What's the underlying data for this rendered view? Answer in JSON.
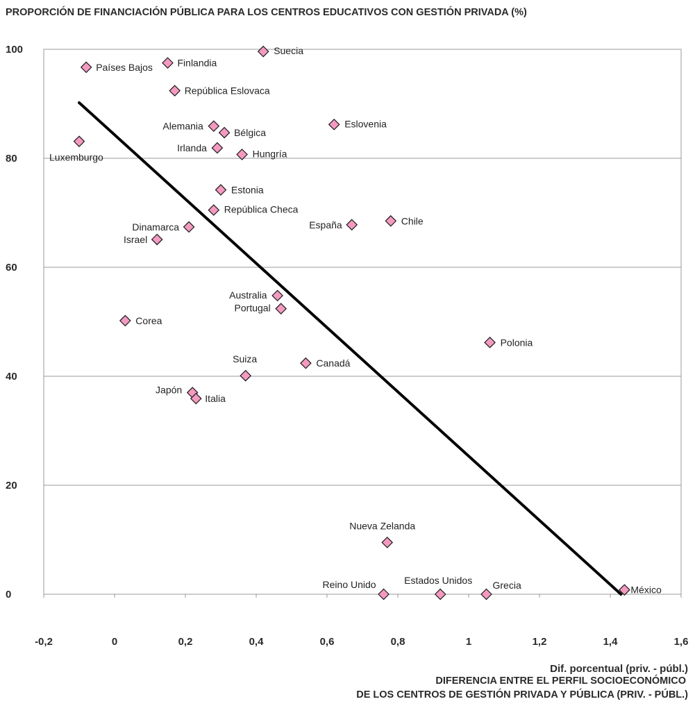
{
  "chart_data": {
    "type": "scatter",
    "title": "PROPORCIÓN DE FINANCIACIÓN PÚBLICA PARA LOS CENTROS EDUCATIVOS CON GESTIÓN PRIVADA (%)",
    "xlabel": "Dif. porcentual (priv. - públ.)",
    "caption_lines": [
      "DIFERENCIA ENTRE EL PERFIL SOCIOECONÓMICO",
      "DE LOS CENTROS DE GESTIÓN PRIVADA Y PÚBLICA (PRIV. - PÚBL.)"
    ],
    "xlim": [
      -0.2,
      1.6
    ],
    "ylim": [
      0,
      100
    ],
    "x_ticks": [
      "-0,2",
      "0",
      "0,2",
      "0,4",
      "0,6",
      "0,8",
      "1",
      "1,2",
      "1,4",
      "1,6"
    ],
    "y_ticks": [
      "0",
      "20",
      "40",
      "60",
      "80",
      "100"
    ],
    "grid": "horizontal",
    "marker_color": "#f49ac1",
    "marker_stroke": "#1a1a1a",
    "points": [
      {
        "name": "Suecia",
        "x": 0.42,
        "y": 99.6
      },
      {
        "name": "Países Bajos",
        "x": -0.08,
        "y": 96.7
      },
      {
        "name": "Finlandia",
        "x": 0.15,
        "y": 97.5
      },
      {
        "name": "República Eslovaca",
        "x": 0.17,
        "y": 92.4
      },
      {
        "name": "Alemania",
        "x": 0.28,
        "y": 85.9
      },
      {
        "name": "Bélgica",
        "x": 0.31,
        "y": 84.7
      },
      {
        "name": "Eslovenia",
        "x": 0.62,
        "y": 86.2
      },
      {
        "name": "Luxemburgo",
        "x": -0.1,
        "y": 83.1
      },
      {
        "name": "Irlanda",
        "x": 0.29,
        "y": 81.9
      },
      {
        "name": "Hungría",
        "x": 0.36,
        "y": 80.7
      },
      {
        "name": "Estonia",
        "x": 0.3,
        "y": 74.2
      },
      {
        "name": "República Checa",
        "x": 0.28,
        "y": 70.5
      },
      {
        "name": "Dinamarca",
        "x": 0.21,
        "y": 67.4
      },
      {
        "name": "España",
        "x": 0.67,
        "y": 67.8
      },
      {
        "name": "Chile",
        "x": 0.78,
        "y": 68.5
      },
      {
        "name": "Israel",
        "x": 0.12,
        "y": 65.1
      },
      {
        "name": "Australia",
        "x": 0.46,
        "y": 54.8
      },
      {
        "name": "Portugal",
        "x": 0.47,
        "y": 52.4
      },
      {
        "name": "Corea",
        "x": 0.03,
        "y": 50.2
      },
      {
        "name": "Polonia",
        "x": 1.06,
        "y": 46.2
      },
      {
        "name": "Canadá",
        "x": 0.54,
        "y": 42.4
      },
      {
        "name": "Suiza",
        "x": 0.37,
        "y": 40.1
      },
      {
        "name": "Japón",
        "x": 0.22,
        "y": 37.0
      },
      {
        "name": "Italia",
        "x": 0.23,
        "y": 35.9
      },
      {
        "name": "Nueva Zelanda",
        "x": 0.77,
        "y": 9.5
      },
      {
        "name": "Reino Unido",
        "x": 0.76,
        "y": 0.0
      },
      {
        "name": "Estados Unidos",
        "x": 0.92,
        "y": 0.0
      },
      {
        "name": "Grecia",
        "x": 1.05,
        "y": 0.0
      },
      {
        "name": "México",
        "x": 1.44,
        "y": 0.8
      }
    ],
    "trendline": {
      "x": [
        -0.1,
        1.43
      ],
      "y": [
        90.2,
        0.0
      ]
    }
  }
}
